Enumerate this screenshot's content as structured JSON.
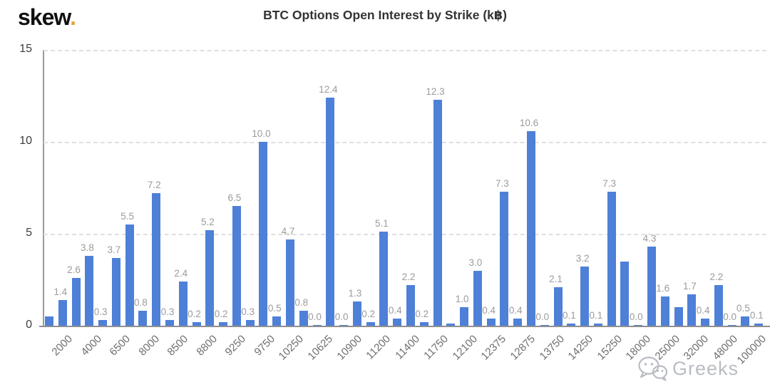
{
  "logo": {
    "text": "skew",
    "dot": "."
  },
  "header": {
    "title": "BTC Options Open Interest by Strike (k฿)"
  },
  "watermark": {
    "icon": "wechat-icon",
    "text": "Greeks"
  },
  "colors": {
    "bar": "#4e80d8",
    "grid": "#e0e0e0",
    "axis": "#8f8f8f",
    "data_label": "#9b9b9b",
    "x_tick_label": "#6e6e6e",
    "y_tick_label": "#3d3d3d",
    "logo_dot": "#e6a23c",
    "watermark": "#b9bdc3"
  },
  "chart_data": {
    "type": "bar",
    "title": "BTC Options Open Interest by Strike (k฿)",
    "xlabel": "",
    "ylabel": "",
    "ylim": [
      0,
      15
    ],
    "yticks": [
      15,
      10,
      5,
      0
    ],
    "grid": "horizontal dashed",
    "legend": "none",
    "x_tick_labels": [
      "2000",
      "4000",
      "6500",
      "8000",
      "8500",
      "8800",
      "9250",
      "9750",
      "10250",
      "10625",
      "10900",
      "11200",
      "11400",
      "11750",
      "12100",
      "12375",
      "12875",
      "13750",
      "14250",
      "15250",
      "18000",
      "25000",
      "32000",
      "48000",
      "100000"
    ],
    "bars": [
      {
        "value": 0.5,
        "label": ""
      },
      {
        "value": 1.4,
        "label": "1.4"
      },
      {
        "value": 2.6,
        "label": "2.6"
      },
      {
        "value": 3.8,
        "label": "3.8"
      },
      {
        "value": 0.3,
        "label": "0.3"
      },
      {
        "value": 3.7,
        "label": "3.7"
      },
      {
        "value": 5.5,
        "label": "5.5"
      },
      {
        "value": 0.8,
        "label": "0.8"
      },
      {
        "value": 7.2,
        "label": "7.2"
      },
      {
        "value": 0.3,
        "label": "0.3"
      },
      {
        "value": 2.4,
        "label": "2.4"
      },
      {
        "value": 0.2,
        "label": "0.2"
      },
      {
        "value": 5.2,
        "label": "5.2"
      },
      {
        "value": 0.2,
        "label": "0.2"
      },
      {
        "value": 6.5,
        "label": "6.5"
      },
      {
        "value": 0.3,
        "label": "0.3"
      },
      {
        "value": 10.0,
        "label": "10.0"
      },
      {
        "value": 0.5,
        "label": "0.5"
      },
      {
        "value": 4.7,
        "label": "4.7"
      },
      {
        "value": 0.8,
        "label": "0.8"
      },
      {
        "value": 0.0,
        "label": "0.0"
      },
      {
        "value": 12.4,
        "label": "12.4"
      },
      {
        "value": 0.0,
        "label": "0.0"
      },
      {
        "value": 1.3,
        "label": "1.3"
      },
      {
        "value": 0.2,
        "label": "0.2"
      },
      {
        "value": 5.1,
        "label": "5.1"
      },
      {
        "value": 0.4,
        "label": "0.4"
      },
      {
        "value": 2.2,
        "label": "2.2"
      },
      {
        "value": 0.2,
        "label": "0.2"
      },
      {
        "value": 12.3,
        "label": "12.3"
      },
      {
        "value": 0.1,
        "label": ""
      },
      {
        "value": 1.0,
        "label": "1.0"
      },
      {
        "value": 3.0,
        "label": "3.0"
      },
      {
        "value": 0.4,
        "label": "0.4"
      },
      {
        "value": 7.3,
        "label": "7.3"
      },
      {
        "value": 0.4,
        "label": "0.4"
      },
      {
        "value": 10.6,
        "label": "10.6"
      },
      {
        "value": 0.0,
        "label": "0.0"
      },
      {
        "value": 2.1,
        "label": "2.1"
      },
      {
        "value": 0.1,
        "label": "0.1"
      },
      {
        "value": 3.2,
        "label": "3.2"
      },
      {
        "value": 0.1,
        "label": "0.1"
      },
      {
        "value": 7.3,
        "label": "7.3"
      },
      {
        "value": 3.5,
        "label": ""
      },
      {
        "value": 0.0,
        "label": "0.0"
      },
      {
        "value": 4.3,
        "label": "4.3"
      },
      {
        "value": 1.6,
        "label": "1.6"
      },
      {
        "value": 1.0,
        "label": ""
      },
      {
        "value": 1.7,
        "label": "1.7"
      },
      {
        "value": 0.4,
        "label": "0.4"
      },
      {
        "value": 2.2,
        "label": "2.2"
      },
      {
        "value": 0.0,
        "label": "0.0"
      },
      {
        "value": 0.5,
        "label": "0.5"
      },
      {
        "value": 0.1,
        "label": "0.1"
      }
    ]
  }
}
